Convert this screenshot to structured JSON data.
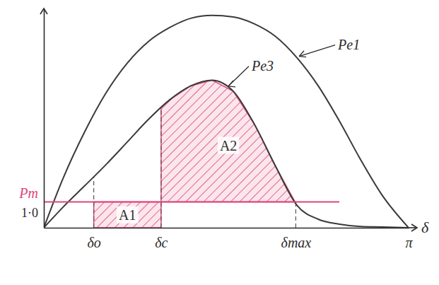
{
  "chart_data": {
    "type": "line",
    "x": [
      0,
      0.17,
      0.353,
      0.536,
      0.718,
      0.901,
      1.084,
      1.266,
      1.449,
      1.632,
      1.815,
      1.997,
      2.18,
      2.363,
      2.545,
      2.728,
      2.911,
      3.1416
    ],
    "series": [
      {
        "name": "Pe1",
        "color": "#3a3a3a",
        "values": [
          0,
          1.96,
          3.73,
          5.23,
          6.38,
          7.22,
          7.76,
          8.12,
          8.23,
          8.17,
          7.9,
          7.41,
          6.59,
          5.5,
          4.14,
          2.64,
          1.28,
          0
        ]
      },
      {
        "name": "Pe3",
        "color": "#3a3a3a",
        "values": [
          0,
          0.82,
          1.63,
          2.45,
          3.32,
          4.2,
          4.96,
          5.5,
          5.72,
          5.29,
          4.0,
          2.37,
          0.87,
          0.33,
          0.14,
          0.05,
          0.03,
          0
        ]
      },
      {
        "name": "Pm",
        "color": "#e0457b",
        "values": [
          1.0,
          1.0,
          1.0,
          1.0,
          1.0,
          1.0,
          1.0,
          1.0,
          1.0,
          1.0,
          1.0,
          1.0,
          1.0,
          1.0,
          1.0,
          null,
          null,
          null
        ]
      }
    ],
    "xlim": [
      0,
      3.1416
    ],
    "ylim": [
      0,
      8.5
    ],
    "xticks": [
      {
        "value": 0.43,
        "label": "δo"
      },
      {
        "value": 1.01,
        "label": "δc"
      },
      {
        "value": 2.17,
        "label": "δmax"
      },
      {
        "value": 3.1416,
        "label": "π"
      }
    ],
    "yticks": [
      {
        "value": 1.0,
        "label": "1·0"
      }
    ],
    "x_label": "δ",
    "shaded_areas": [
      {
        "label": "A1",
        "xlim": [
          0.43,
          1.01
        ]
      },
      {
        "label": "A2",
        "xlim": [
          1.01,
          2.17
        ]
      }
    ]
  }
}
